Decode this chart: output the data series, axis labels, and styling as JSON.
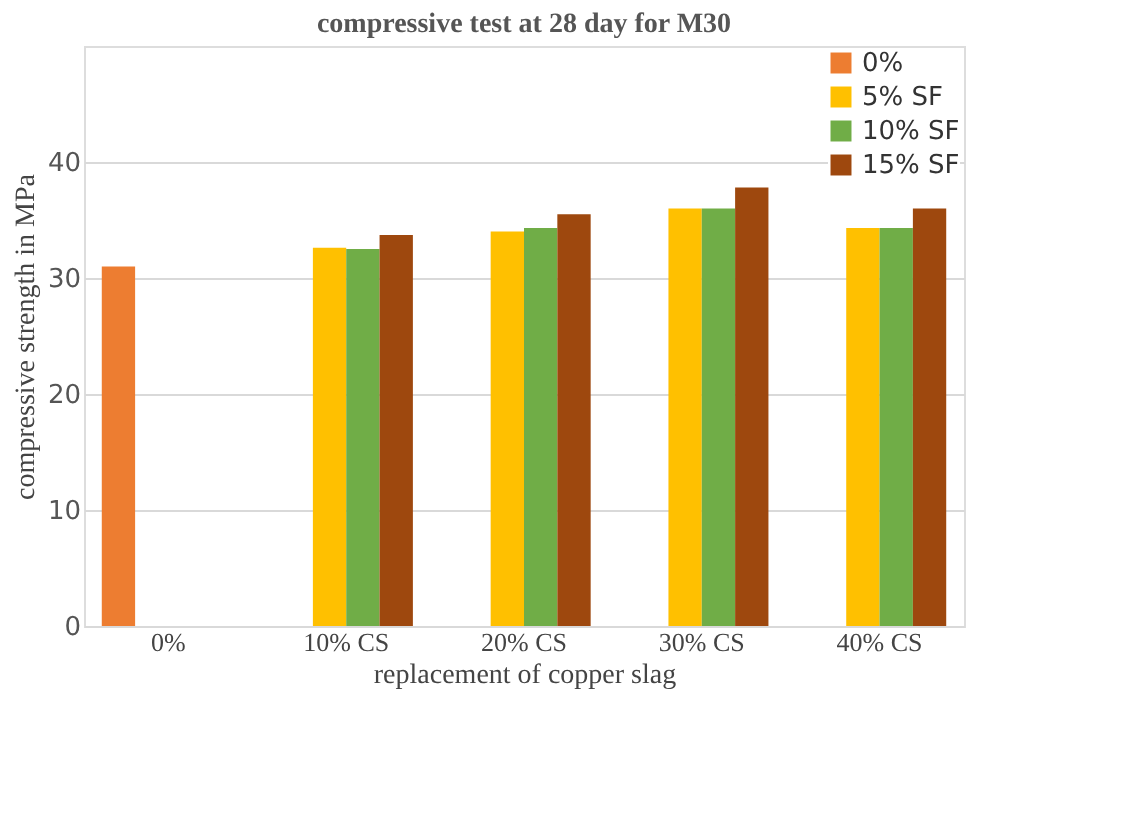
{
  "chart_data": {
    "type": "bar",
    "title": "compressive  test at 28 day  for M30",
    "xlabel": "replacement of copper slag",
    "ylabel": "compressive  strength  in MPa",
    "categories": [
      "0%",
      "10% CS",
      "20% CS",
      "30% CS",
      "40% CS"
    ],
    "series": [
      {
        "name": "0%",
        "color": "#ed7d31",
        "values": [
          31.0,
          null,
          null,
          null,
          null
        ]
      },
      {
        "name": "5% SF",
        "color": "#ffc000",
        "values": [
          null,
          32.6,
          34.0,
          36.0,
          34.3
        ]
      },
      {
        "name": "10% SF",
        "color": "#70ad47",
        "values": [
          null,
          32.5,
          34.3,
          36.0,
          34.3
        ]
      },
      {
        "name": "15% SF",
        "color": "#9e480e",
        "values": [
          null,
          33.7,
          35.5,
          37.8,
          36.0
        ]
      }
    ],
    "ylim": [
      0,
      50
    ],
    "yticks": [
      0,
      10,
      20,
      30,
      40
    ],
    "grid": "y",
    "legend": "top right"
  }
}
